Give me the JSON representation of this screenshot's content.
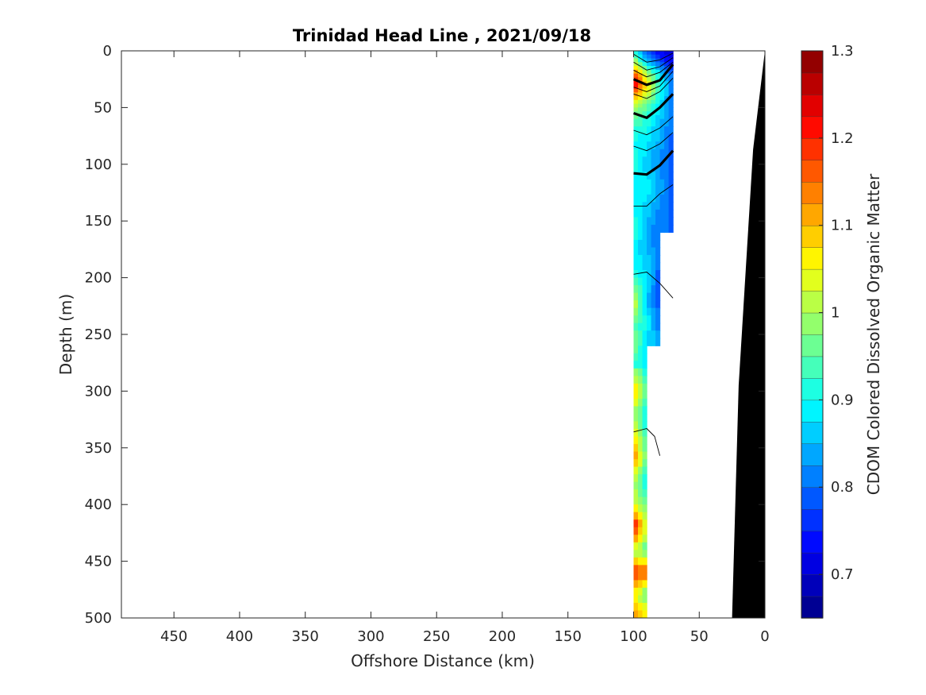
{
  "chart_data": {
    "type": "heatmap",
    "title": "Trinidad Head Line , 2021/09/18",
    "xlabel": "Offshore Distance (km)",
    "ylabel": "Depth (m)",
    "colorbar_label": "CDOM Colored Dissolved Organic Matter",
    "xlim": [
      490,
      0
    ],
    "x_reversed": true,
    "ylim": [
      0,
      500
    ],
    "y_reversed": true,
    "x_ticks": [
      450,
      400,
      350,
      300,
      250,
      200,
      150,
      100,
      50,
      0
    ],
    "y_ticks": [
      0,
      50,
      100,
      150,
      200,
      250,
      300,
      350,
      400,
      450,
      500
    ],
    "colorbar": {
      "min": 0.65,
      "max": 1.3,
      "levels": 26,
      "colormap": "jet",
      "ticks": [
        0.7,
        0.8,
        0.9,
        1,
        1.1,
        1.2,
        1.3
      ]
    },
    "x_stations": [
      100,
      90,
      80,
      70
    ],
    "depths": [
      0,
      10,
      20,
      30,
      40,
      50,
      60,
      80,
      100,
      120,
      140,
      160,
      180,
      200,
      220,
      240,
      260,
      280,
      300,
      320,
      340,
      360,
      380,
      400,
      420,
      440,
      460,
      480,
      500
    ],
    "cdom": [
      [
        0.92,
        0.78,
        0.72,
        0.7
      ],
      [
        1.02,
        0.85,
        0.78,
        0.73
      ],
      [
        1.18,
        1.0,
        0.88,
        0.78
      ],
      [
        1.25,
        1.08,
        0.92,
        0.8
      ],
      [
        1.12,
        1.02,
        0.9,
        0.8
      ],
      [
        1.0,
        0.95,
        0.88,
        0.8
      ],
      [
        0.95,
        0.92,
        0.86,
        0.8
      ],
      [
        0.9,
        0.88,
        0.84,
        0.78
      ],
      [
        0.92,
        0.86,
        0.82,
        0.78
      ],
      [
        0.88,
        0.9,
        0.84,
        0.78
      ],
      [
        0.9,
        0.86,
        0.82,
        0.78
      ],
      [
        0.92,
        0.84,
        0.8,
        null
      ],
      [
        0.88,
        0.86,
        0.8,
        null
      ],
      [
        0.92,
        0.88,
        0.78,
        null
      ],
      [
        1.05,
        0.85,
        0.78,
        null
      ],
      [
        0.95,
        0.9,
        0.8,
        null
      ],
      [
        1.0,
        0.85,
        null,
        null
      ],
      [
        null,
        0.9,
        null,
        null
      ],
      [
        1.1,
        0.95,
        null,
        null
      ],
      [
        1.0,
        0.88,
        null,
        null
      ],
      [
        1.08,
        0.92,
        null,
        null
      ],
      [
        1.15,
        0.95,
        null,
        null
      ],
      [
        1.0,
        0.88,
        null,
        null
      ],
      [
        1.05,
        0.95,
        null,
        null
      ],
      [
        1.25,
        1.0,
        null,
        null
      ],
      [
        1.0,
        0.95,
        null,
        null
      ],
      [
        1.2,
        1.15,
        null,
        null
      ],
      [
        1.05,
        0.95,
        null,
        null
      ],
      [
        1.15,
        1.08,
        null,
        null
      ]
    ],
    "contour_lines": [
      {
        "bold": false,
        "points": [
          [
            100,
            3
          ],
          [
            90,
            10
          ],
          [
            80,
            8
          ],
          [
            70,
            2
          ]
        ]
      },
      {
        "bold": false,
        "points": [
          [
            100,
            10
          ],
          [
            90,
            17
          ],
          [
            80,
            14
          ],
          [
            70,
            6
          ]
        ]
      },
      {
        "bold": false,
        "points": [
          [
            100,
            17
          ],
          [
            90,
            23
          ],
          [
            80,
            19
          ],
          [
            70,
            10
          ]
        ]
      },
      {
        "bold": true,
        "points": [
          [
            100,
            25
          ],
          [
            90,
            30
          ],
          [
            80,
            26
          ],
          [
            70,
            12
          ]
        ]
      },
      {
        "bold": false,
        "points": [
          [
            100,
            32
          ],
          [
            90,
            36
          ],
          [
            80,
            31
          ],
          [
            70,
            18
          ]
        ]
      },
      {
        "bold": false,
        "points": [
          [
            100,
            38
          ],
          [
            90,
            42
          ],
          [
            80,
            36
          ],
          [
            70,
            24
          ]
        ]
      },
      {
        "bold": true,
        "points": [
          [
            100,
            55
          ],
          [
            90,
            59
          ],
          [
            80,
            50
          ],
          [
            70,
            38
          ]
        ]
      },
      {
        "bold": false,
        "points": [
          [
            100,
            70
          ],
          [
            90,
            74
          ],
          [
            80,
            68
          ],
          [
            70,
            58
          ]
        ]
      },
      {
        "bold": false,
        "points": [
          [
            100,
            84
          ],
          [
            90,
            88
          ],
          [
            80,
            82
          ],
          [
            70,
            72
          ]
        ]
      },
      {
        "bold": true,
        "points": [
          [
            100,
            108
          ],
          [
            90,
            109
          ],
          [
            80,
            101
          ],
          [
            70,
            88
          ]
        ]
      },
      {
        "bold": false,
        "points": [
          [
            100,
            137
          ],
          [
            90,
            137
          ],
          [
            80,
            126
          ],
          [
            70,
            118
          ]
        ]
      },
      {
        "bold": false,
        "points": [
          [
            100,
            197
          ],
          [
            90,
            195
          ],
          [
            80,
            205
          ],
          [
            70,
            218
          ]
        ]
      },
      {
        "bold": false,
        "points": [
          [
            100,
            336
          ],
          [
            90,
            333
          ],
          [
            84,
            340
          ],
          [
            80,
            357
          ]
        ]
      }
    ],
    "bathymetry": [
      [
        0,
        0
      ],
      [
        9,
        87
      ],
      [
        20,
        295
      ],
      [
        25,
        500
      ],
      [
        0,
        500
      ]
    ]
  }
}
